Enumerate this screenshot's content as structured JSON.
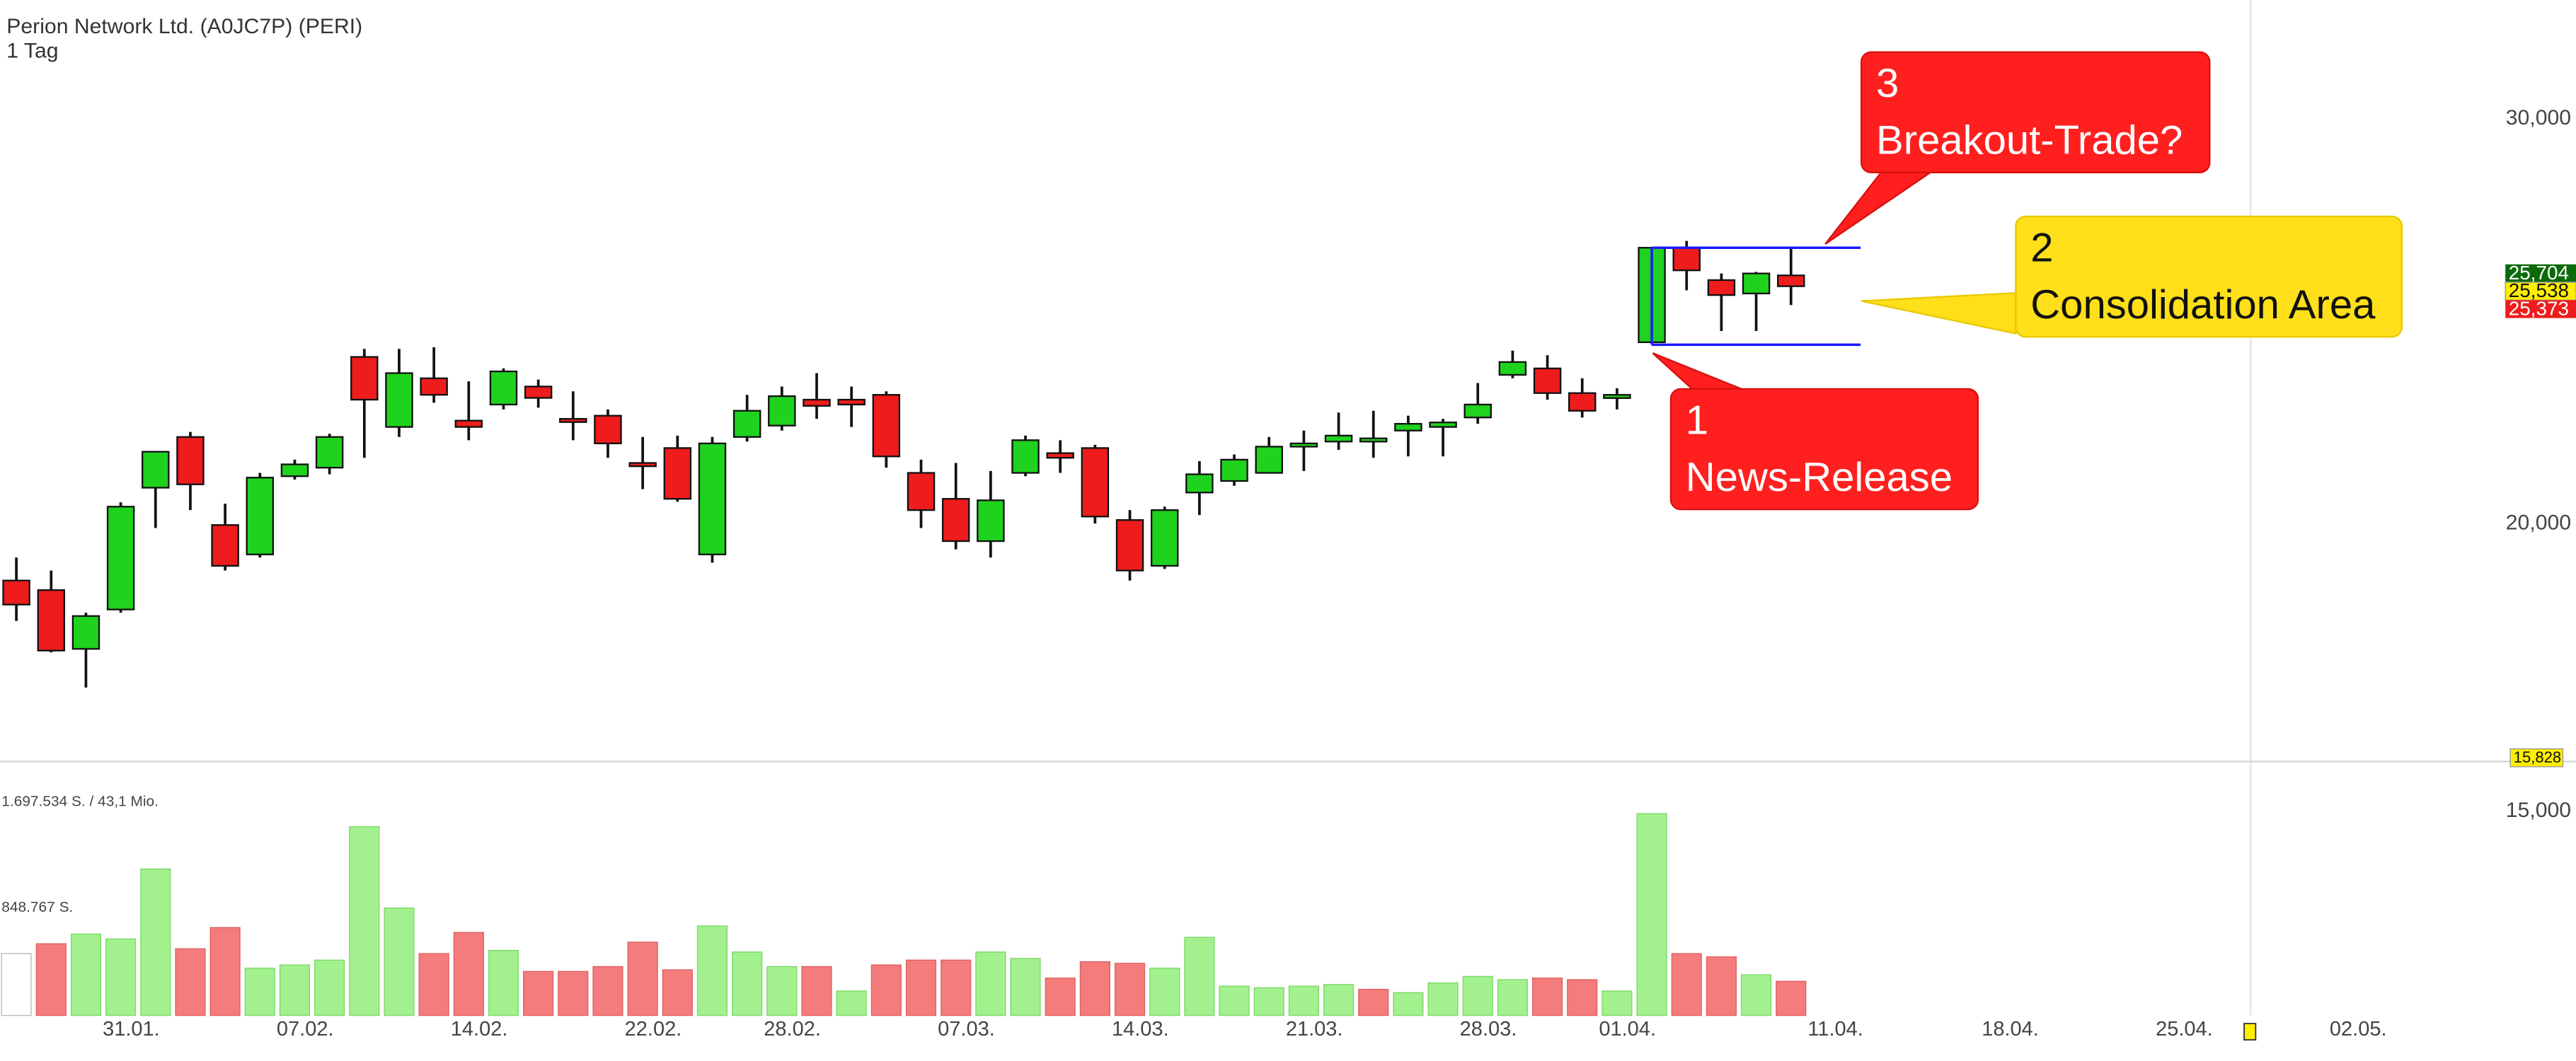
{
  "chart_data": {
    "type": "candlestick",
    "title": "Perion Network Ltd. (A0JC7P) (PERI)",
    "subtitle": "1 Tag",
    "log_scale": true,
    "xlim": [
      -0.47,
      73.56
    ],
    "xticks": [
      {
        "value": 3,
        "label": "31.01."
      },
      {
        "value": 8,
        "label": "07.02."
      },
      {
        "value": 13,
        "label": "14.02."
      },
      {
        "value": 18,
        "label": "22.02."
      },
      {
        "value": 22,
        "label": "28.02."
      },
      {
        "value": 27,
        "label": "07.03."
      },
      {
        "value": 32,
        "label": "14.03."
      },
      {
        "value": 37,
        "label": "21.03."
      },
      {
        "value": 42,
        "label": "28.03."
      },
      {
        "value": 46,
        "label": "01.04."
      },
      {
        "value": 52,
        "label": "11.04."
      },
      {
        "value": 57,
        "label": "18.04."
      },
      {
        "value": 62,
        "label": "25.04."
      },
      {
        "value": 67,
        "label": "02.05."
      }
    ],
    "ylim": [
      12.23,
      33.79
    ],
    "yticks": [
      {
        "value": 30,
        "label": "30,000"
      },
      {
        "value": 20,
        "label": "20,000"
      },
      {
        "value": 15,
        "label": "15,000"
      }
    ],
    "up_color": "#1ed21e",
    "down_color": "#ee1c1c",
    "open": [
      18.9,
      18.72,
      17.65,
      18.36,
      20.74,
      21.82,
      19.98,
      19.4,
      20.98,
      21.16,
      23.64,
      22.04,
      23.14,
      22.18,
      22.54,
      22.95,
      22.22,
      22.29,
      21.26,
      21.58,
      19.4,
      21.82,
      22.07,
      22.65,
      22.65,
      22.76,
      21.05,
      20.51,
      19.66,
      21.05,
      21.47,
      21.58,
      20.08,
      19.18,
      20.64,
      20.88,
      21.05,
      21.65,
      21.72,
      21.75,
      21.96,
      22.04,
      22.25,
      23.22,
      23.37,
      22.8,
      22.69,
      23.99,
      26.37,
      25.53,
      25.19,
      25.65
    ],
    "high": [
      19.34,
      19.09,
      18.3,
      20.44,
      21.51,
      21.93,
      20.41,
      21.05,
      21.33,
      21.89,
      23.83,
      23.83,
      23.87,
      23.07,
      23.37,
      23.11,
      22.84,
      22.43,
      21.82,
      21.85,
      21.82,
      22.76,
      22.95,
      23.26,
      22.95,
      22.84,
      21.33,
      21.26,
      21.09,
      21.85,
      21.75,
      21.65,
      20.28,
      20.35,
      21.3,
      21.44,
      21.82,
      21.96,
      22.36,
      22.4,
      22.29,
      22.22,
      23.03,
      23.79,
      23.68,
      23.14,
      22.91,
      26.37,
      26.55,
      25.7,
      25.74,
      26.37
    ],
    "low": [
      18.15,
      17.59,
      16.98,
      18.3,
      19.92,
      20.28,
      19.09,
      19.34,
      20.91,
      21.02,
      21.37,
      21.82,
      22.58,
      21.75,
      22.43,
      22.47,
      21.75,
      21.37,
      20.71,
      20.45,
      19.24,
      21.72,
      21.96,
      22.22,
      22.04,
      21.16,
      19.92,
      19.5,
      19.34,
      20.98,
      21.05,
      20.01,
      18.9,
      19.12,
      20.18,
      20.78,
      21.05,
      21.09,
      21.54,
      21.37,
      21.4,
      21.4,
      22.11,
      23.14,
      22.65,
      22.25,
      22.43,
      23.99,
      25.27,
      24.26,
      24.26,
      24.9
    ],
    "close": [
      18.45,
      17.62,
      18.24,
      20.35,
      21.5,
      20.81,
      19.18,
      20.95,
      21.23,
      21.82,
      22.65,
      23.26,
      22.76,
      22.04,
      23.3,
      22.69,
      22.18,
      21.68,
      21.19,
      20.51,
      21.68,
      22.4,
      22.73,
      22.51,
      22.54,
      21.4,
      20.28,
      19.66,
      20.48,
      21.75,
      21.37,
      20.15,
      19.09,
      20.28,
      21.02,
      21.33,
      21.61,
      21.68,
      21.85,
      21.79,
      22.11,
      22.14,
      22.54,
      23.52,
      22.8,
      22.4,
      22.76,
      26.37,
      25.78,
      25.15,
      25.7,
      25.373
    ],
    "volume": [
      496000,
      575000,
      653000,
      614000,
      1175000,
      535000,
      705000,
      379000,
      405000,
      444000,
      1515000,
      862000,
      496000,
      666000,
      522000,
      353000,
      353000,
      392000,
      588000,
      366000,
      718000,
      509000,
      392000,
      392000,
      196000,
      405000,
      444000,
      444000,
      509000,
      457000,
      300000,
      431000,
      418000,
      379000,
      627000,
      235000,
      222000,
      235000,
      248000,
      209000,
      183000,
      261000,
      313000,
      287000,
      300000,
      287000,
      196000,
      1619000,
      496000,
      470000,
      326000,
      274000
    ],
    "volume_ylim": [
      0,
      1697534
    ],
    "volume_ticks": [
      {
        "value": 1697534,
        "label": "1.697.534 S. / 43,1 Mio."
      },
      {
        "value": 848767,
        "label": "848.767 S."
      }
    ],
    "volume_up_color": "#a2f08e",
    "volume_down_color": "#f47c7c",
    "price_markers": [
      {
        "value": 25.704,
        "label": "25,704",
        "color": "#0b6b0b"
      },
      {
        "value": 25.538,
        "label": "25,538",
        "color": "#ffee00"
      },
      {
        "value": 25.373,
        "label": "25,373",
        "color": "#ee1c1c"
      },
      {
        "value": 15.828,
        "label": "15,828",
        "color": "#ffee00"
      }
    ],
    "consolidation": {
      "high": 26.37,
      "low": 23.93,
      "color": "#1a1aff"
    },
    "annotations": [
      {
        "number": "1",
        "text": "News-Release",
        "color": "#ff1f1f"
      },
      {
        "number": "2",
        "text": "Consolidation Area",
        "color": "#ffdf1a"
      },
      {
        "number": "3",
        "text": "Breakout-Trade?",
        "color": "#ff1f1f"
      }
    ]
  }
}
